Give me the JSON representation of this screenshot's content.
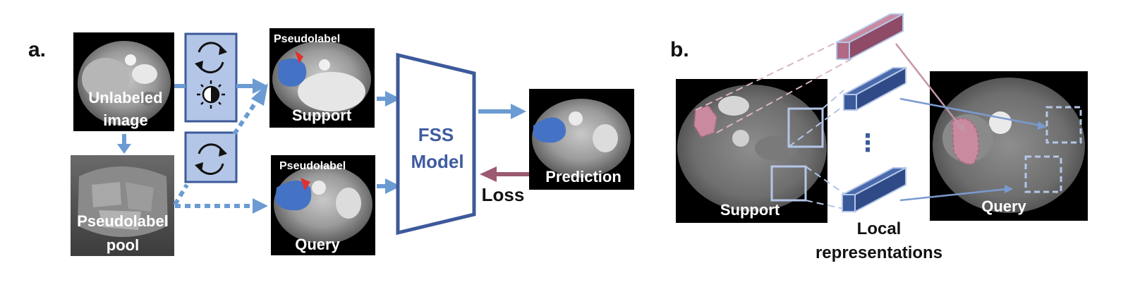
{
  "panel_a": {
    "letter": "a.",
    "unlabeled_image_line1": "Unlabeled",
    "unlabeled_image_line2": "image",
    "pool_line1": "Pseudolabel",
    "pool_line2": "pool",
    "support_pseudolabel": "Pseudolabel",
    "support_label": "Support",
    "query_pseudolabel": "Pseudolabel",
    "query_label": "Query",
    "model_line1": "FSS",
    "model_line2": "Model",
    "prediction_label": "Prediction",
    "loss_label": "Loss"
  },
  "panel_b": {
    "letter": "b.",
    "support_label": "Support",
    "query_label": "Query",
    "ellipsis": "⋮",
    "local_line1": "Local",
    "local_line2": "representations"
  },
  "colors": {
    "arrow_blue": "#6b9bd2",
    "model_outline": "#3d5a9a",
    "model_text": "#3f5ba0",
    "loss_arrow": "#9c5a72",
    "aug_box_fill": "#b4c6e7",
    "aug_box_stroke": "#3d5a9a",
    "mask_blue": "#4472c4",
    "pink_patch": "#c98aa0",
    "feature_pink": "#b06a85",
    "feature_blue": "#3a5a9c"
  },
  "icons": [
    "rotate-icon",
    "brightness-icon",
    "rotate-icon"
  ]
}
